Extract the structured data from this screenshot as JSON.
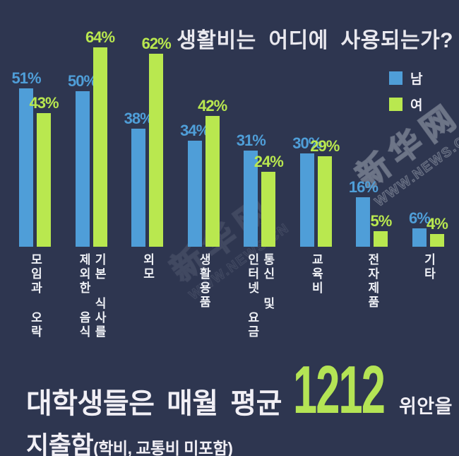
{
  "title": "생활비는 어디에 사용되는가?",
  "legend": [
    {
      "label": "남"
    },
    {
      "label": "여"
    }
  ],
  "colors": {
    "background": "#2e3650",
    "male": "#4f9ed8",
    "female": "#b9e84f",
    "amount": "#b4e455",
    "text": "#eef0f5"
  },
  "chart_data": {
    "type": "bar",
    "title": "생활비는 어디에 사용되는가?",
    "categories": [
      "모임과 오락",
      "기본 식사를\n제외한 음식",
      "외모",
      "생활용품",
      "통신 및\n인터넷 요금",
      "교육비",
      "전자제품",
      "기타"
    ],
    "series": [
      {
        "name": "남",
        "color": "#4f9ed8",
        "values": [
          51,
          50,
          38,
          34,
          31,
          30,
          16,
          6
        ]
      },
      {
        "name": "여",
        "color": "#b9e84f",
        "values": [
          43,
          64,
          62,
          42,
          24,
          29,
          5,
          4
        ]
      }
    ],
    "unit": "%",
    "value_labels": true,
    "ylim": [
      0,
      70
    ],
    "grid": false,
    "legend_position": "top-right"
  },
  "footer": {
    "line1_prefix": "대학생들은 매월 평균",
    "amount": "1212",
    "line1_suffix": "위안을",
    "line2_main": "지출함",
    "line2_note": "(학비, 교통비 미포함)"
  },
  "watermark": {
    "site_cn": "新华网",
    "site_url": "WWW.NEWS.CN"
  }
}
